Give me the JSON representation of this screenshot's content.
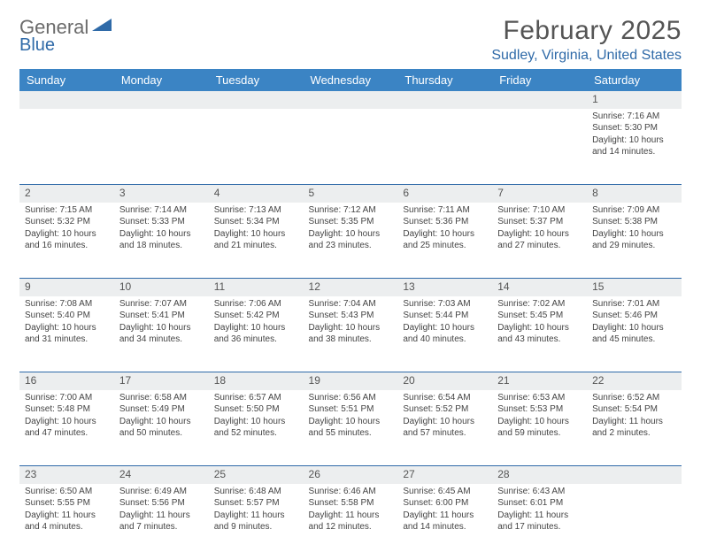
{
  "brand": {
    "part1": "General",
    "part2": "Blue"
  },
  "title": "February 2025",
  "location": "Sudley, Virginia, United States",
  "colors": {
    "header_bg": "#3b84c4",
    "accent": "#2f6aa8",
    "stripe": "#eceeef",
    "text": "#444444",
    "background": "#ffffff"
  },
  "typography": {
    "body_fontsize": 10,
    "title_fontsize": 30,
    "header_fontsize": 13
  },
  "dows": [
    "Sunday",
    "Monday",
    "Tuesday",
    "Wednesday",
    "Thursday",
    "Friday",
    "Saturday"
  ],
  "weeks": [
    [
      null,
      null,
      null,
      null,
      null,
      null,
      {
        "n": "1",
        "sr": "Sunrise: 7:16 AM",
        "ss": "Sunset: 5:30 PM",
        "d1": "Daylight: 10 hours",
        "d2": "and 14 minutes."
      }
    ],
    [
      {
        "n": "2",
        "sr": "Sunrise: 7:15 AM",
        "ss": "Sunset: 5:32 PM",
        "d1": "Daylight: 10 hours",
        "d2": "and 16 minutes."
      },
      {
        "n": "3",
        "sr": "Sunrise: 7:14 AM",
        "ss": "Sunset: 5:33 PM",
        "d1": "Daylight: 10 hours",
        "d2": "and 18 minutes."
      },
      {
        "n": "4",
        "sr": "Sunrise: 7:13 AM",
        "ss": "Sunset: 5:34 PM",
        "d1": "Daylight: 10 hours",
        "d2": "and 21 minutes."
      },
      {
        "n": "5",
        "sr": "Sunrise: 7:12 AM",
        "ss": "Sunset: 5:35 PM",
        "d1": "Daylight: 10 hours",
        "d2": "and 23 minutes."
      },
      {
        "n": "6",
        "sr": "Sunrise: 7:11 AM",
        "ss": "Sunset: 5:36 PM",
        "d1": "Daylight: 10 hours",
        "d2": "and 25 minutes."
      },
      {
        "n": "7",
        "sr": "Sunrise: 7:10 AM",
        "ss": "Sunset: 5:37 PM",
        "d1": "Daylight: 10 hours",
        "d2": "and 27 minutes."
      },
      {
        "n": "8",
        "sr": "Sunrise: 7:09 AM",
        "ss": "Sunset: 5:38 PM",
        "d1": "Daylight: 10 hours",
        "d2": "and 29 minutes."
      }
    ],
    [
      {
        "n": "9",
        "sr": "Sunrise: 7:08 AM",
        "ss": "Sunset: 5:40 PM",
        "d1": "Daylight: 10 hours",
        "d2": "and 31 minutes."
      },
      {
        "n": "10",
        "sr": "Sunrise: 7:07 AM",
        "ss": "Sunset: 5:41 PM",
        "d1": "Daylight: 10 hours",
        "d2": "and 34 minutes."
      },
      {
        "n": "11",
        "sr": "Sunrise: 7:06 AM",
        "ss": "Sunset: 5:42 PM",
        "d1": "Daylight: 10 hours",
        "d2": "and 36 minutes."
      },
      {
        "n": "12",
        "sr": "Sunrise: 7:04 AM",
        "ss": "Sunset: 5:43 PM",
        "d1": "Daylight: 10 hours",
        "d2": "and 38 minutes."
      },
      {
        "n": "13",
        "sr": "Sunrise: 7:03 AM",
        "ss": "Sunset: 5:44 PM",
        "d1": "Daylight: 10 hours",
        "d2": "and 40 minutes."
      },
      {
        "n": "14",
        "sr": "Sunrise: 7:02 AM",
        "ss": "Sunset: 5:45 PM",
        "d1": "Daylight: 10 hours",
        "d2": "and 43 minutes."
      },
      {
        "n": "15",
        "sr": "Sunrise: 7:01 AM",
        "ss": "Sunset: 5:46 PM",
        "d1": "Daylight: 10 hours",
        "d2": "and 45 minutes."
      }
    ],
    [
      {
        "n": "16",
        "sr": "Sunrise: 7:00 AM",
        "ss": "Sunset: 5:48 PM",
        "d1": "Daylight: 10 hours",
        "d2": "and 47 minutes."
      },
      {
        "n": "17",
        "sr": "Sunrise: 6:58 AM",
        "ss": "Sunset: 5:49 PM",
        "d1": "Daylight: 10 hours",
        "d2": "and 50 minutes."
      },
      {
        "n": "18",
        "sr": "Sunrise: 6:57 AM",
        "ss": "Sunset: 5:50 PM",
        "d1": "Daylight: 10 hours",
        "d2": "and 52 minutes."
      },
      {
        "n": "19",
        "sr": "Sunrise: 6:56 AM",
        "ss": "Sunset: 5:51 PM",
        "d1": "Daylight: 10 hours",
        "d2": "and 55 minutes."
      },
      {
        "n": "20",
        "sr": "Sunrise: 6:54 AM",
        "ss": "Sunset: 5:52 PM",
        "d1": "Daylight: 10 hours",
        "d2": "and 57 minutes."
      },
      {
        "n": "21",
        "sr": "Sunrise: 6:53 AM",
        "ss": "Sunset: 5:53 PM",
        "d1": "Daylight: 10 hours",
        "d2": "and 59 minutes."
      },
      {
        "n": "22",
        "sr": "Sunrise: 6:52 AM",
        "ss": "Sunset: 5:54 PM",
        "d1": "Daylight: 11 hours",
        "d2": "and 2 minutes."
      }
    ],
    [
      {
        "n": "23",
        "sr": "Sunrise: 6:50 AM",
        "ss": "Sunset: 5:55 PM",
        "d1": "Daylight: 11 hours",
        "d2": "and 4 minutes."
      },
      {
        "n": "24",
        "sr": "Sunrise: 6:49 AM",
        "ss": "Sunset: 5:56 PM",
        "d1": "Daylight: 11 hours",
        "d2": "and 7 minutes."
      },
      {
        "n": "25",
        "sr": "Sunrise: 6:48 AM",
        "ss": "Sunset: 5:57 PM",
        "d1": "Daylight: 11 hours",
        "d2": "and 9 minutes."
      },
      {
        "n": "26",
        "sr": "Sunrise: 6:46 AM",
        "ss": "Sunset: 5:58 PM",
        "d1": "Daylight: 11 hours",
        "d2": "and 12 minutes."
      },
      {
        "n": "27",
        "sr": "Sunrise: 6:45 AM",
        "ss": "Sunset: 6:00 PM",
        "d1": "Daylight: 11 hours",
        "d2": "and 14 minutes."
      },
      {
        "n": "28",
        "sr": "Sunrise: 6:43 AM",
        "ss": "Sunset: 6:01 PM",
        "d1": "Daylight: 11 hours",
        "d2": "and 17 minutes."
      },
      null
    ]
  ]
}
